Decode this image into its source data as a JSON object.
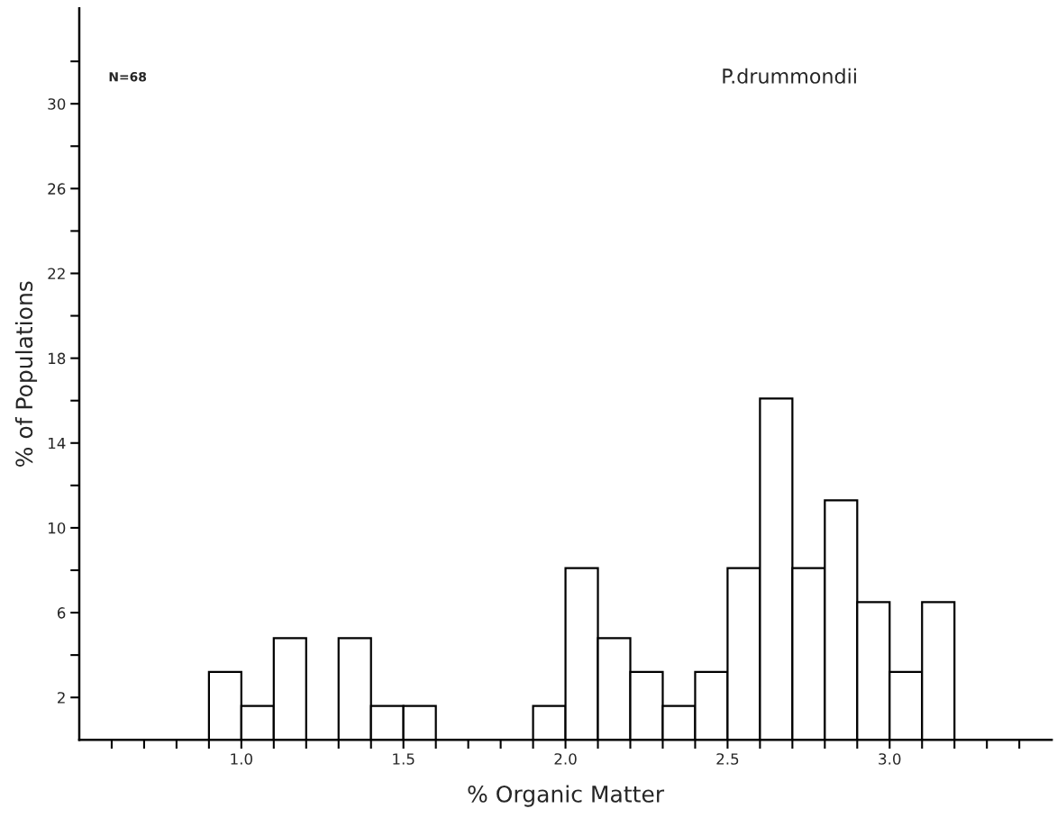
{
  "chart_data": {
    "type": "histogram",
    "xlabel": "% Organic Matter",
    "ylabel": "% of Populations",
    "annotations": [
      "N=68",
      "P.drummondii"
    ],
    "bins": [
      0.9,
      1.0,
      1.1,
      1.2,
      1.3,
      1.4,
      1.5,
      1.6,
      1.7,
      1.8,
      1.9,
      2.0,
      2.1,
      2.2,
      2.3,
      2.4,
      2.5,
      2.6,
      2.7,
      2.8,
      2.9,
      3.0,
      3.1,
      3.2
    ],
    "values": [
      3.2,
      1.6,
      4.8,
      0,
      4.8,
      1.6,
      1.6,
      0,
      0,
      0,
      1.6,
      8.1,
      4.8,
      3.2,
      1.6,
      3.2,
      8.1,
      16.1,
      8.1,
      11.3,
      6.5,
      3.2,
      6.5
    ],
    "color": "#ffffff",
    "xlim": [
      0.5,
      3.5
    ],
    "xticks": [
      {
        "value": 0.6,
        "label": null
      },
      {
        "value": 0.7,
        "label": null
      },
      {
        "value": 0.8,
        "label": null
      },
      {
        "value": 0.9,
        "label": null
      },
      {
        "value": 1.0,
        "label": "1.0"
      },
      {
        "value": 1.1,
        "label": null
      },
      {
        "value": 1.2,
        "label": null
      },
      {
        "value": 1.3,
        "label": null
      },
      {
        "value": 1.4,
        "label": null
      },
      {
        "value": 1.5,
        "label": "1.5"
      },
      {
        "value": 1.6,
        "label": null
      },
      {
        "value": 1.7,
        "label": null
      },
      {
        "value": 1.8,
        "label": null
      },
      {
        "value": 1.9,
        "label": null
      },
      {
        "value": 2.0,
        "label": "2.0"
      },
      {
        "value": 2.1,
        "label": null
      },
      {
        "value": 2.2,
        "label": null
      },
      {
        "value": 2.3,
        "label": null
      },
      {
        "value": 2.4,
        "label": null
      },
      {
        "value": 2.5,
        "label": "2.5"
      },
      {
        "value": 2.6,
        "label": null
      },
      {
        "value": 2.7,
        "label": null
      },
      {
        "value": 2.8,
        "label": null
      },
      {
        "value": 2.9,
        "label": null
      },
      {
        "value": 3.0,
        "label": "3.0"
      },
      {
        "value": 3.1,
        "label": null
      },
      {
        "value": 3.2,
        "label": null
      },
      {
        "value": 3.3,
        "label": null
      },
      {
        "value": 3.4,
        "label": null
      }
    ],
    "ylim": [
      0,
      34.5
    ],
    "yticks": [
      2,
      {
        "value": 4,
        "label": null
      },
      6,
      {
        "value": 8,
        "label": null
      },
      10,
      {
        "value": 12,
        "label": null
      },
      14,
      {
        "value": 16,
        "label": null
      },
      18,
      {
        "value": 20,
        "label": null
      },
      22,
      {
        "value": 24,
        "label": null
      },
      26,
      {
        "value": 28,
        "label": null
      },
      30,
      {
        "value": 32,
        "label": null
      }
    ],
    "grid": false,
    "legend": false
  }
}
